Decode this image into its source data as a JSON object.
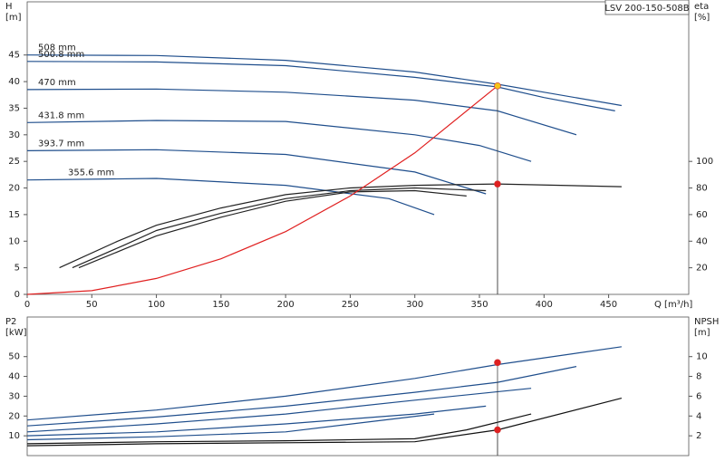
{
  "chart_data": [
    {
      "type": "line",
      "title": "LSV 200-150-508B",
      "ylabel": "H",
      "ylabel_unit": "[m]",
      "y2label": "eta",
      "y2label_unit": "[%]",
      "xlabel": "Q [m³/h]",
      "xlim": [
        0,
        512
      ],
      "xticks": [
        0,
        50,
        100,
        150,
        200,
        250,
        300,
        350,
        400,
        450
      ],
      "ylim": [
        0,
        55
      ],
      "yticks": [
        0,
        5,
        10,
        15,
        20,
        25,
        30,
        35,
        40,
        45
      ],
      "y2lim": [
        0,
        220
      ],
      "y2ticks": [
        20,
        40,
        60,
        80,
        100
      ],
      "series": [
        {
          "name": "508 mm",
          "color": "#1f4e8c",
          "x": [
            0,
            100,
            200,
            300,
            364,
            400,
            460
          ],
          "values": [
            45,
            44.9,
            44,
            41.8,
            39.5,
            38,
            35.5
          ]
        },
        {
          "name": "500.8 mm",
          "color": "#1f4e8c",
          "x": [
            0,
            100,
            200,
            300,
            364,
            400,
            455
          ],
          "values": [
            43.8,
            43.7,
            43,
            40.8,
            39,
            37,
            34.5
          ]
        },
        {
          "name": "470 mm",
          "color": "#1f4e8c",
          "x": [
            0,
            100,
            200,
            300,
            364,
            425
          ],
          "values": [
            38.5,
            38.6,
            38,
            36.5,
            34.5,
            30
          ]
        },
        {
          "name": "431.8 mm",
          "color": "#1f4e8c",
          "x": [
            0,
            100,
            200,
            300,
            350,
            390
          ],
          "values": [
            32.3,
            32.7,
            32.5,
            30,
            28,
            25
          ]
        },
        {
          "name": "393.7 mm",
          "color": "#1f4e8c",
          "x": [
            0,
            100,
            200,
            300,
            340,
            355
          ],
          "values": [
            27,
            27.2,
            26.3,
            23,
            20,
            18.9
          ]
        },
        {
          "name": "355.6 mm",
          "color": "#1f4e8c",
          "x": [
            0,
            100,
            200,
            280,
            315
          ],
          "values": [
            21.5,
            21.8,
            20.5,
            18,
            15
          ]
        },
        {
          "color": "#222222",
          "axis": "y2",
          "x": [
            25,
            70,
            100,
            150,
            200,
            250,
            300,
            364,
            460
          ],
          "values": [
            20,
            40,
            52,
            65,
            75,
            80,
            82,
            83,
            81
          ]
        },
        {
          "color": "#222222",
          "axis": "y2",
          "x": [
            35,
            75,
            100,
            150,
            200,
            250,
            300,
            355
          ],
          "values": [
            20,
            37,
            48,
            61,
            72,
            78,
            80,
            78
          ]
        },
        {
          "color": "#222222",
          "axis": "y2",
          "x": [
            40,
            75,
            100,
            150,
            200,
            250,
            300,
            340
          ],
          "values": [
            20,
            34,
            44,
            58,
            70,
            77,
            78,
            74
          ]
        },
        {
          "color": "#e02020",
          "x": [
            0,
            50,
            100,
            150,
            200,
            250,
            300,
            364
          ],
          "values": [
            0,
            0.7,
            3,
            6.7,
            11.8,
            18.5,
            26.6,
            39.2
          ]
        },
        {
          "color": "#f5c518",
          "marker": true,
          "x": [
            364
          ],
          "values": [
            39.2
          ]
        },
        {
          "color": "#e02020",
          "marker": true,
          "axis": "y2",
          "x": [
            364
          ],
          "values": [
            83
          ]
        }
      ]
    },
    {
      "type": "line",
      "ylabel": "P2",
      "ylabel_unit": "[kW]",
      "y2label": "NPSH",
      "y2label_unit": "[m]",
      "xlim": [
        0,
        512
      ],
      "ylim": [
        0,
        70
      ],
      "yticks": [
        10,
        20,
        30,
        40,
        50
      ],
      "y2lim": [
        0,
        14
      ],
      "y2ticks": [
        2,
        4,
        6,
        8,
        10
      ],
      "series": [
        {
          "color": "#1f4e8c",
          "x": [
            0,
            100,
            200,
            300,
            364,
            460
          ],
          "values": [
            18,
            23,
            30,
            39,
            46,
            55
          ]
        },
        {
          "color": "#1f4e8c",
          "x": [
            0,
            100,
            200,
            300,
            364,
            425
          ],
          "values": [
            15,
            19.5,
            25,
            32,
            37,
            45
          ]
        },
        {
          "color": "#1f4e8c",
          "x": [
            0,
            100,
            200,
            300,
            390
          ],
          "values": [
            12,
            16,
            21,
            28,
            34
          ]
        },
        {
          "color": "#1f4e8c",
          "x": [
            0,
            100,
            200,
            300,
            355
          ],
          "values": [
            10,
            12,
            16,
            21,
            25
          ]
        },
        {
          "color": "#1f4e8c",
          "x": [
            0,
            100,
            200,
            315
          ],
          "values": [
            8,
            9.5,
            12,
            21
          ]
        },
        {
          "color": "#111111",
          "axis": "y2",
          "x": [
            0,
            100,
            200,
            300,
            364,
            460
          ],
          "values": [
            1,
            1.2,
            1.3,
            1.4,
            2.6,
            5.8
          ]
        },
        {
          "color": "#111111",
          "axis": "y2",
          "x": [
            0,
            100,
            200,
            300,
            340,
            390
          ],
          "values": [
            1.2,
            1.4,
            1.5,
            1.7,
            2.6,
            4.2
          ]
        },
        {
          "color": "#e02020",
          "marker": true,
          "x": [
            364
          ],
          "values": [
            47
          ]
        },
        {
          "color": "#e02020",
          "marker": true,
          "axis": "y2",
          "x": [
            364
          ],
          "values": [
            2.6
          ]
        }
      ]
    }
  ]
}
